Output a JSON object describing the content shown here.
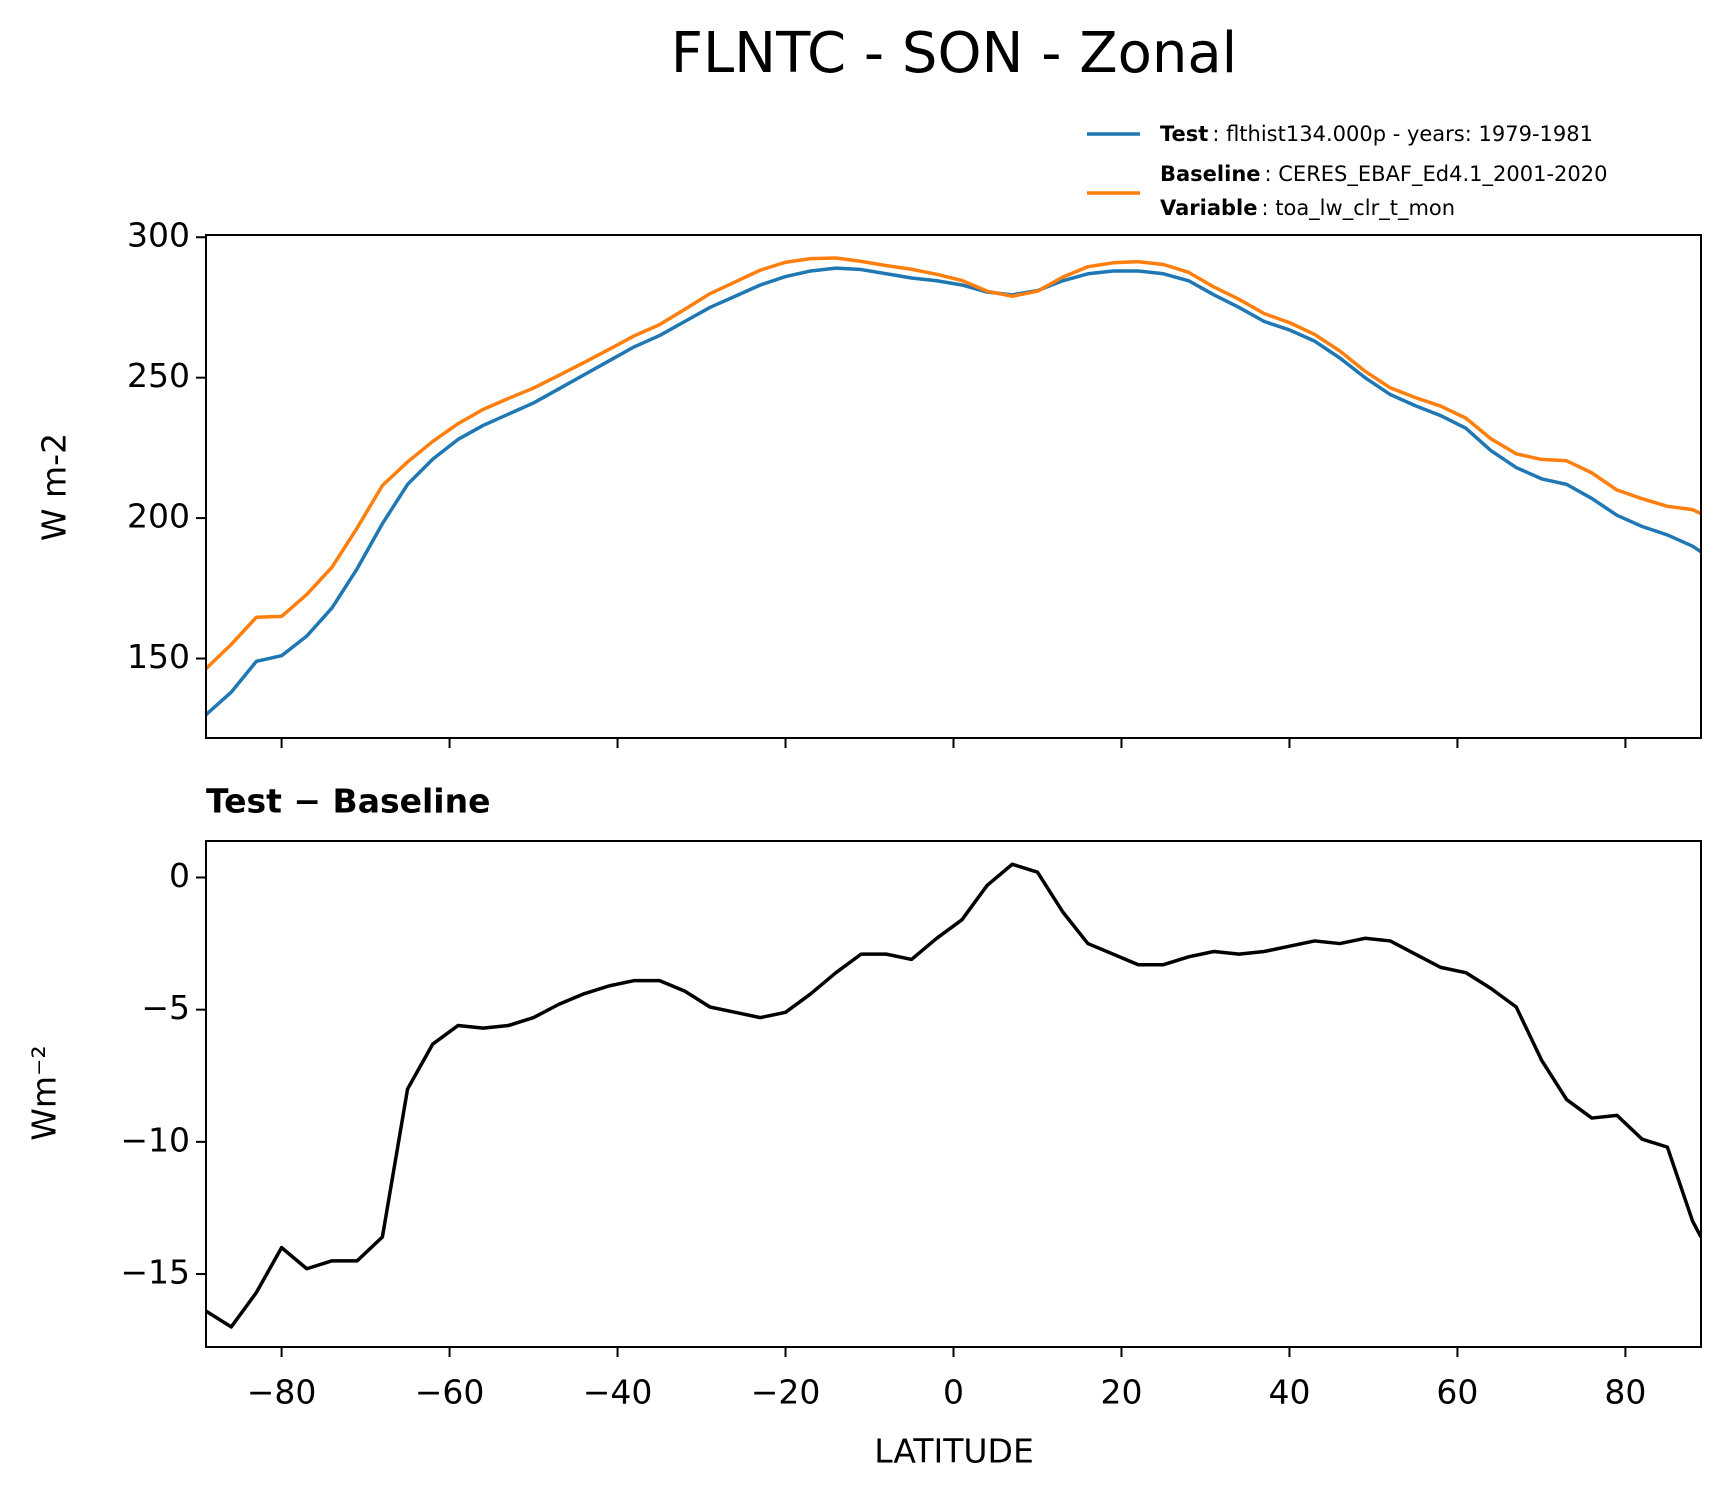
{
  "chart_data": [
    {
      "type": "line",
      "title": "FLNTC - SON - Zonal",
      "ylabel": "W m-2",
      "x": [
        -89,
        -86,
        -83,
        -80,
        -77,
        -74,
        -71,
        -68,
        -65,
        -62,
        -59,
        -56,
        -53,
        -50,
        -47,
        -44,
        -41,
        -38,
        -35,
        -32,
        -29,
        -26,
        -23,
        -20,
        -17,
        -14,
        -11,
        -8,
        -5,
        -2,
        1,
        4,
        7,
        10,
        13,
        16,
        19,
        22,
        25,
        28,
        31,
        34,
        37,
        40,
        43,
        46,
        49,
        52,
        55,
        58,
        61,
        64,
        67,
        70,
        73,
        76,
        79,
        82,
        85,
        88,
        89
      ],
      "series": [
        {
          "name": "Test",
          "description": ": flthist134.000p - years: 1979-1981",
          "color": "#1f77b4",
          "values": [
            130,
            138,
            149,
            151,
            158,
            168,
            182,
            198,
            212,
            221,
            228,
            233,
            237,
            241,
            246,
            251,
            256,
            261,
            265,
            270,
            275,
            279,
            283,
            286,
            288,
            289,
            288.5,
            287,
            285.5,
            284.5,
            283,
            280.5,
            279.5,
            281,
            284.5,
            287,
            288,
            288,
            287,
            284.5,
            279.5,
            275,
            270,
            267,
            263,
            257,
            250,
            244,
            240,
            236.5,
            232,
            224,
            218,
            214,
            212,
            207,
            201,
            197,
            194,
            190,
            188
          ]
        },
        {
          "name": "Baseline",
          "description": ": CERES_EBAF_Ed4.1_2001-2020",
          "color": "#ff7f0e",
          "values": [
            146.4,
            155,
            164.7,
            165,
            172.8,
            182.5,
            196.5,
            211.6,
            220,
            227.3,
            233.6,
            238.7,
            242.6,
            246.3,
            250.8,
            255.4,
            260.1,
            264.9,
            268.9,
            274.3,
            279.9,
            284.1,
            288.3,
            291.1,
            292.4,
            292.6,
            291.4,
            289.9,
            288.6,
            286.8,
            284.6,
            280.8,
            279,
            280.8,
            285.8,
            289.5,
            290.9,
            291.3,
            290.3,
            287.5,
            282.3,
            277.9,
            272.8,
            269.6,
            265.4,
            259.5,
            252.3,
            246.4,
            242.9,
            239.9,
            235.6,
            228.2,
            222.9,
            220.9,
            220.4,
            216.1,
            210,
            206.9,
            204.2,
            203,
            201.6
          ]
        }
      ],
      "variable": {
        "name": "Variable",
        "description": ": toa_lw_clr_t_mon"
      },
      "xlim": [
        -89,
        89
      ],
      "xticks": [
        -80,
        -60,
        -40,
        -20,
        0,
        20,
        40,
        60,
        80
      ],
      "show_xtick_labels": false,
      "ylim": [
        121.7,
        300.8
      ],
      "yticks": [
        150,
        200,
        250,
        300
      ],
      "grid": false,
      "legend": "upper right"
    },
    {
      "type": "line",
      "title": "Test − Baseline",
      "ylabel": "Wm⁻²",
      "xlabel": "LATITUDE",
      "x": [
        -89,
        -86,
        -83,
        -80,
        -77,
        -74,
        -71,
        -68,
        -65,
        -62,
        -59,
        -56,
        -53,
        -50,
        -47,
        -44,
        -41,
        -38,
        -35,
        -32,
        -29,
        -26,
        -23,
        -20,
        -17,
        -14,
        -11,
        -8,
        -5,
        -2,
        1,
        4,
        7,
        10,
        13,
        16,
        19,
        22,
        25,
        28,
        31,
        34,
        37,
        40,
        43,
        46,
        49,
        52,
        55,
        58,
        61,
        64,
        67,
        70,
        73,
        76,
        79,
        82,
        85,
        88,
        89
      ],
      "series": [
        {
          "color": "#000000",
          "values": [
            -16.4,
            -17,
            -15.7,
            -14,
            -14.8,
            -14.5,
            -14.5,
            -13.6,
            -8,
            -6.3,
            -5.6,
            -5.7,
            -5.6,
            -5.3,
            -4.8,
            -4.4,
            -4.1,
            -3.9,
            -3.9,
            -4.3,
            -4.9,
            -5.1,
            -5.3,
            -5.1,
            -4.4,
            -3.6,
            -2.9,
            -2.9,
            -3.1,
            -2.3,
            -1.6,
            -0.3,
            0.5,
            0.2,
            -1.3,
            -2.5,
            -2.9,
            -3.3,
            -3.3,
            -3,
            -2.8,
            -2.9,
            -2.8,
            -2.6,
            -2.4,
            -2.5,
            -2.3,
            -2.4,
            -2.9,
            -3.4,
            -3.6,
            -4.2,
            -4.9,
            -6.9,
            -8.4,
            -9.1,
            -9,
            -9.9,
            -10.2,
            -13,
            -13.6
          ]
        }
      ],
      "xlim": [
        -89,
        89
      ],
      "xticks": [
        {
          "value": -80,
          "label": "−80"
        },
        {
          "value": -60,
          "label": "−60"
        },
        {
          "value": -40,
          "label": "−40"
        },
        {
          "value": -20,
          "label": "−20"
        },
        0,
        20,
        40,
        60,
        80
      ],
      "show_xtick_labels": true,
      "ylim": [
        -17.76,
        1.38
      ],
      "yticks": [
        {
          "value": -15,
          "label": "−15"
        },
        {
          "value": -10,
          "label": "−10"
        },
        {
          "value": -5,
          "label": "−5"
        },
        0
      ],
      "grid": false
    }
  ]
}
